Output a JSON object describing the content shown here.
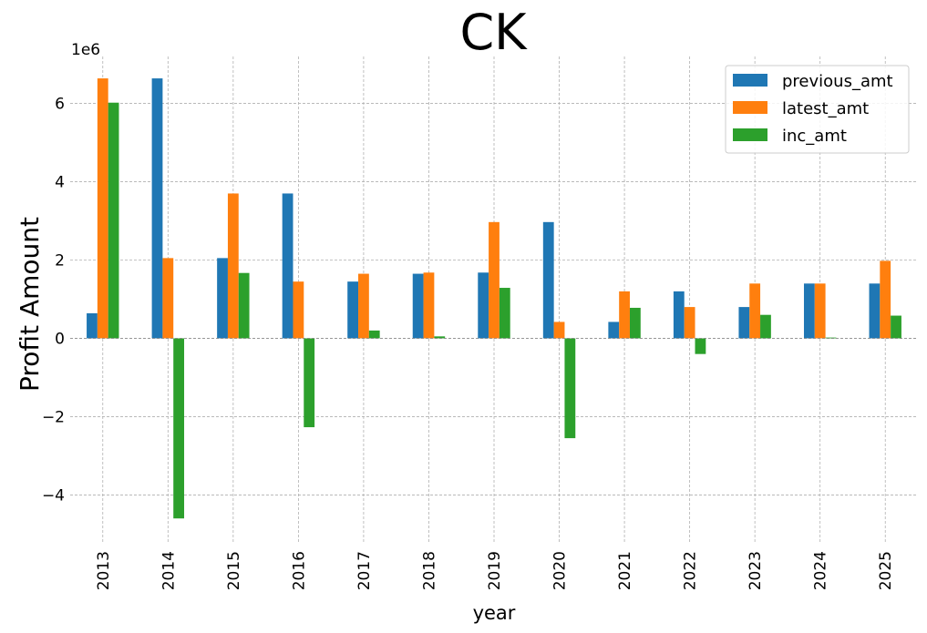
{
  "chart_data": {
    "type": "bar",
    "title": "CK",
    "xlabel": "year",
    "ylabel": "Profit Amount",
    "y_scale_label": "1e6",
    "ylim": [
      -5.2,
      7.2
    ],
    "y_ticks": [
      -4,
      -2,
      0,
      2,
      4,
      6
    ],
    "y_tick_labels": [
      "−4",
      "−2",
      "0",
      "2",
      "4",
      "6"
    ],
    "grid": true,
    "legend_position": "top-right",
    "categories": [
      "2013",
      "2014",
      "2015",
      "2016",
      "2017",
      "2018",
      "2019",
      "2020",
      "2021",
      "2022",
      "2023",
      "2024",
      "2025"
    ],
    "series": [
      {
        "name": "previous_amt",
        "color": "#1f77b4",
        "values": [
          0.64,
          6.64,
          2.05,
          3.7,
          1.45,
          1.65,
          1.68,
          2.97,
          0.42,
          1.2,
          0.8,
          1.4,
          1.4
        ]
      },
      {
        "name": "latest_amt",
        "color": "#ff7f0e",
        "values": [
          6.64,
          2.05,
          3.7,
          1.45,
          1.65,
          1.68,
          2.97,
          0.42,
          1.2,
          0.8,
          1.4,
          1.4,
          1.98
        ]
      },
      {
        "name": "inc_amt",
        "color": "#2ca02c",
        "values": [
          6.02,
          -4.6,
          1.67,
          -2.27,
          0.2,
          0.05,
          1.29,
          -2.55,
          0.78,
          -0.4,
          0.6,
          0.02,
          0.58
        ]
      }
    ]
  }
}
